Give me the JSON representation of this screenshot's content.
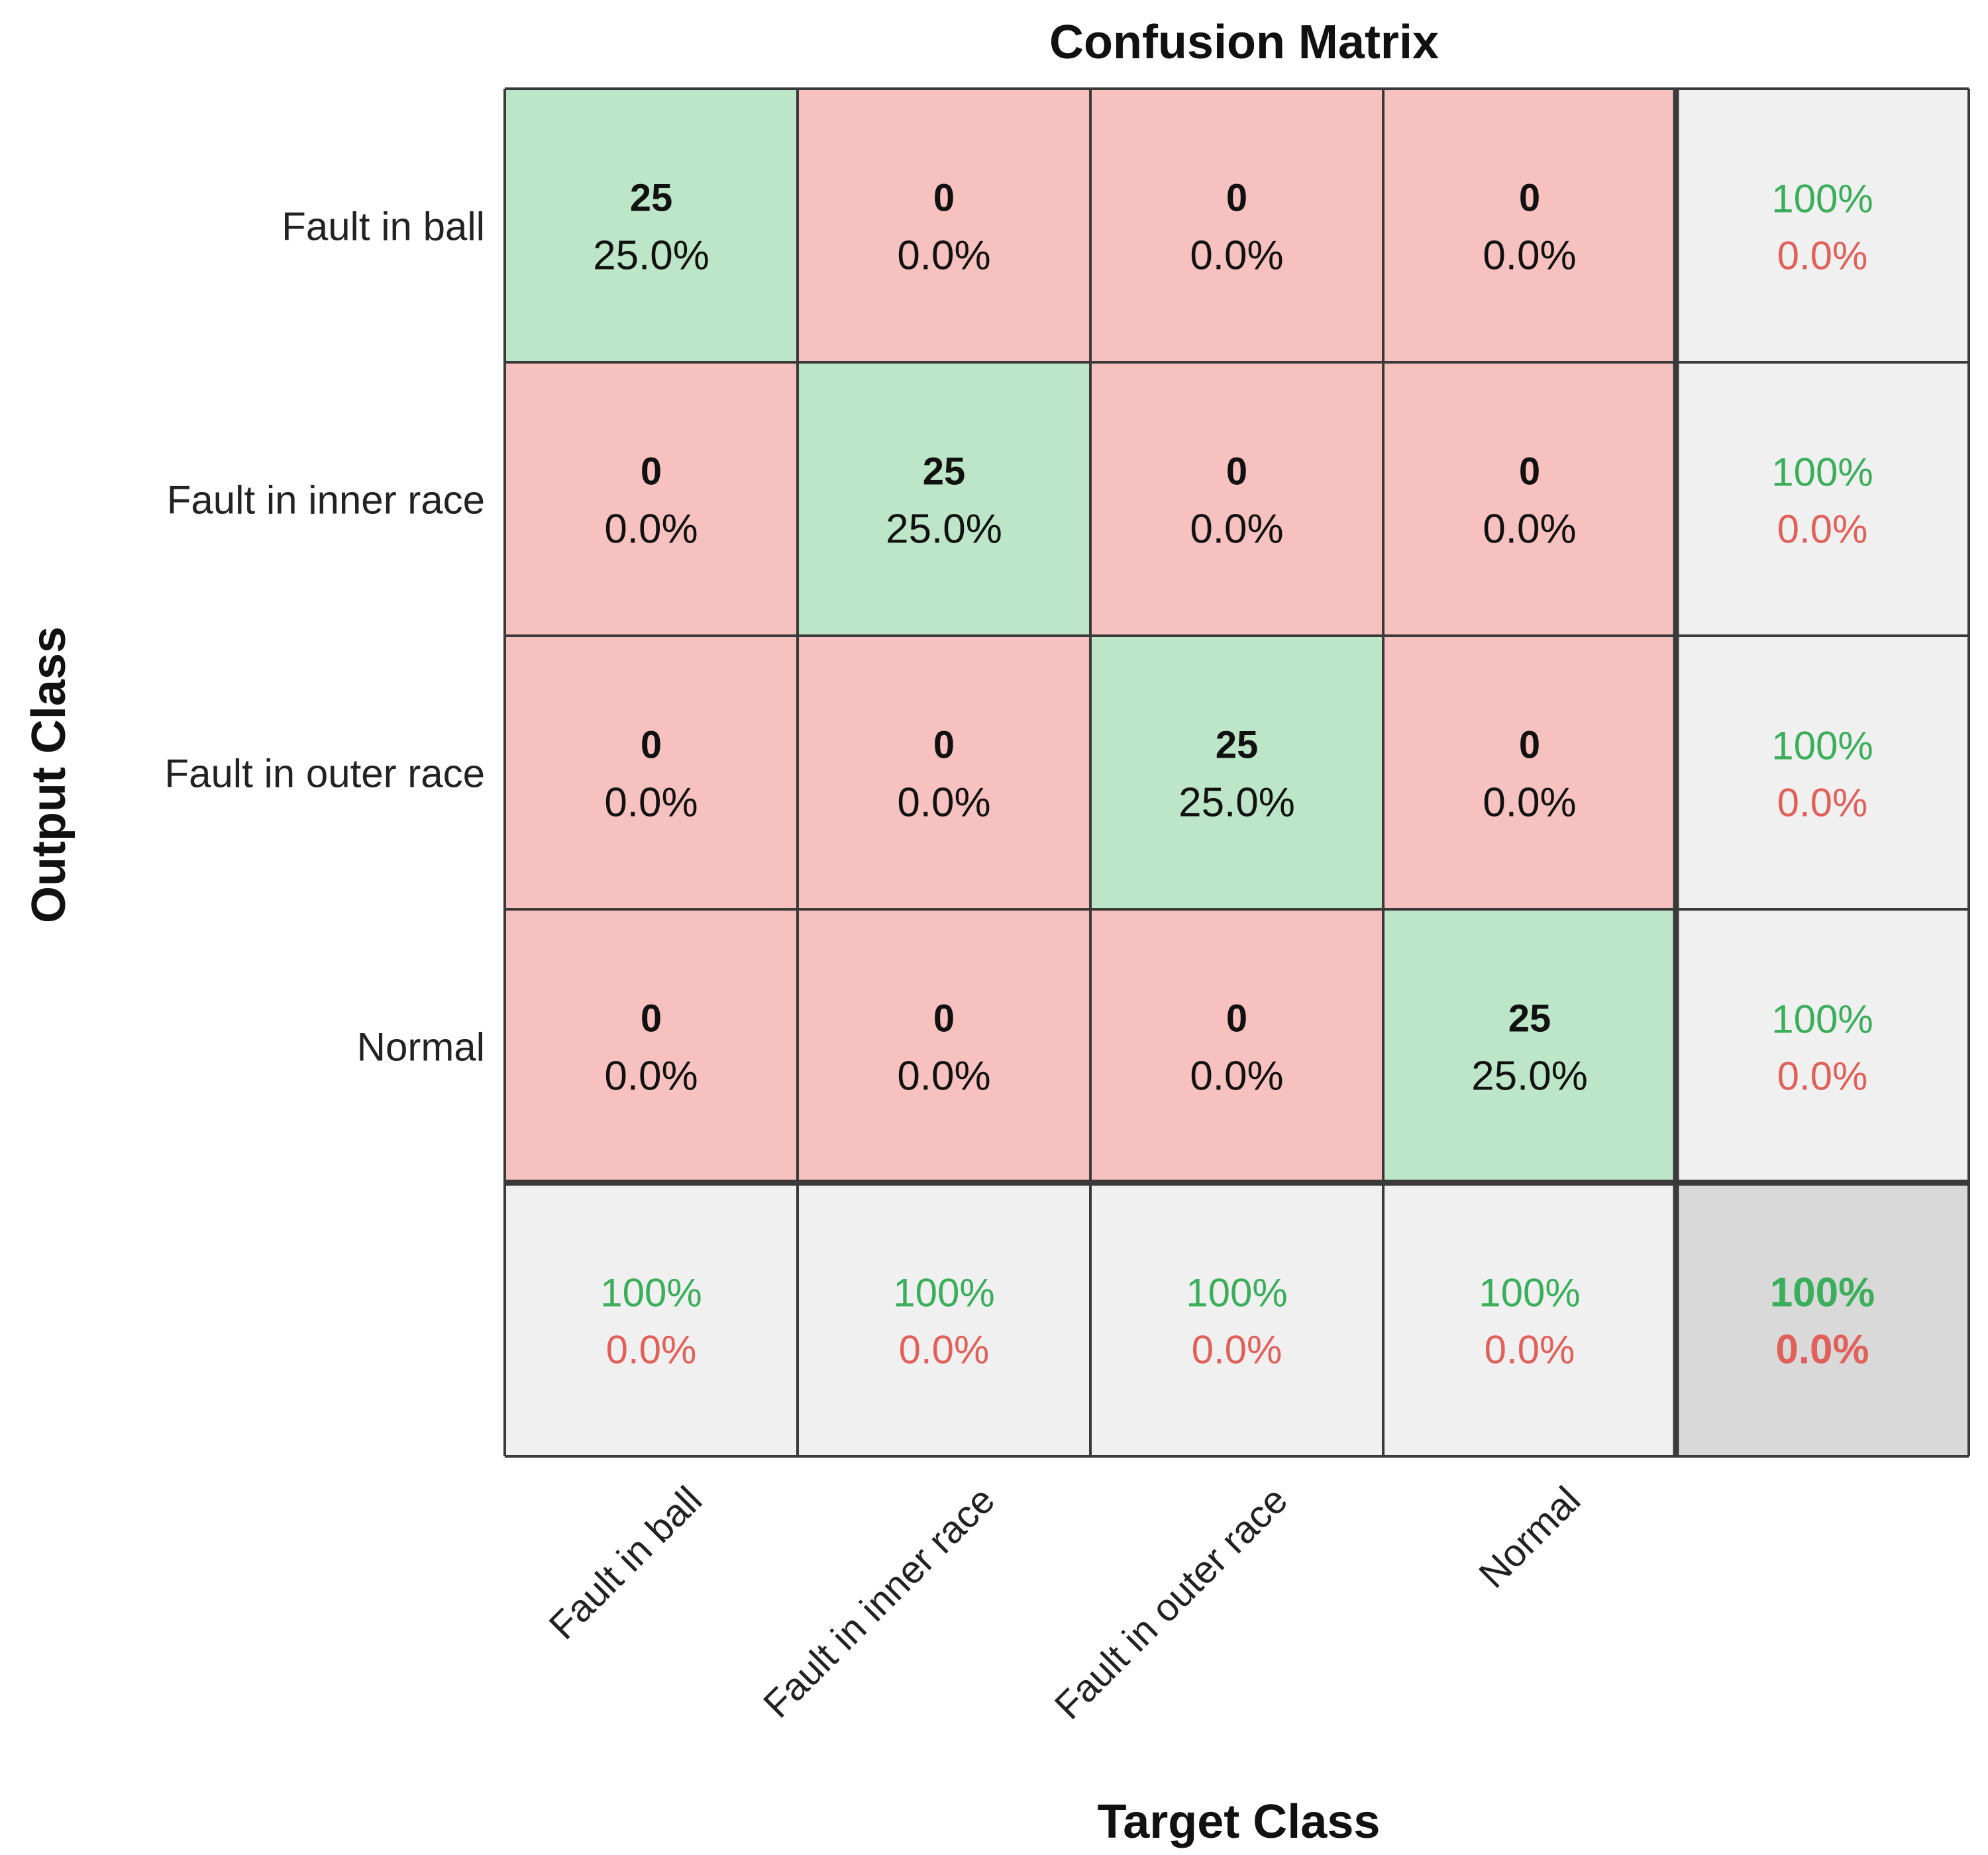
{
  "chart_data": {
    "type": "heatmap",
    "title": "Confusion Matrix",
    "xlabel": "Target Class",
    "ylabel": "Output Class",
    "row_labels": [
      "Fault in ball",
      "Fault in inner race",
      "Fault in outer race",
      "Normal"
    ],
    "col_labels": [
      "Fault in ball",
      "Fault in inner race",
      "Fault in outer race",
      "Normal"
    ],
    "counts": [
      [
        25,
        0,
        0,
        0
      ],
      [
        0,
        25,
        0,
        0
      ],
      [
        0,
        0,
        25,
        0
      ],
      [
        0,
        0,
        0,
        25
      ]
    ],
    "cells": [
      [
        {
          "count": "25",
          "pct": "25.0%"
        },
        {
          "count": "0",
          "pct": "0.0%"
        },
        {
          "count": "0",
          "pct": "0.0%"
        },
        {
          "count": "0",
          "pct": "0.0%"
        }
      ],
      [
        {
          "count": "0",
          "pct": "0.0%"
        },
        {
          "count": "25",
          "pct": "25.0%"
        },
        {
          "count": "0",
          "pct": "0.0%"
        },
        {
          "count": "0",
          "pct": "0.0%"
        }
      ],
      [
        {
          "count": "0",
          "pct": "0.0%"
        },
        {
          "count": "0",
          "pct": "0.0%"
        },
        {
          "count": "25",
          "pct": "25.0%"
        },
        {
          "count": "0",
          "pct": "0.0%"
        }
      ],
      [
        {
          "count": "0",
          "pct": "0.0%"
        },
        {
          "count": "0",
          "pct": "0.0%"
        },
        {
          "count": "0",
          "pct": "0.0%"
        },
        {
          "count": "25",
          "pct": "25.0%"
        }
      ]
    ],
    "row_summary": [
      {
        "correct": "100%",
        "error": "0.0%"
      },
      {
        "correct": "100%",
        "error": "0.0%"
      },
      {
        "correct": "100%",
        "error": "0.0%"
      },
      {
        "correct": "100%",
        "error": "0.0%"
      }
    ],
    "col_summary": [
      {
        "correct": "100%",
        "error": "0.0%"
      },
      {
        "correct": "100%",
        "error": "0.0%"
      },
      {
        "correct": "100%",
        "error": "0.0%"
      },
      {
        "correct": "100%",
        "error": "0.0%"
      }
    ],
    "overall": {
      "correct": "100%",
      "error": "0.0%"
    },
    "colors": {
      "correct_cell": "#bde6c8",
      "error_cell": "#f7c1bf",
      "summary_cell": "#f0f0f0",
      "overall_cell": "#d9d9d9",
      "correct_text": "#3aae5a",
      "error_text": "#e0605a",
      "grid": "#3a3a3a",
      "text": "#111111"
    }
  }
}
